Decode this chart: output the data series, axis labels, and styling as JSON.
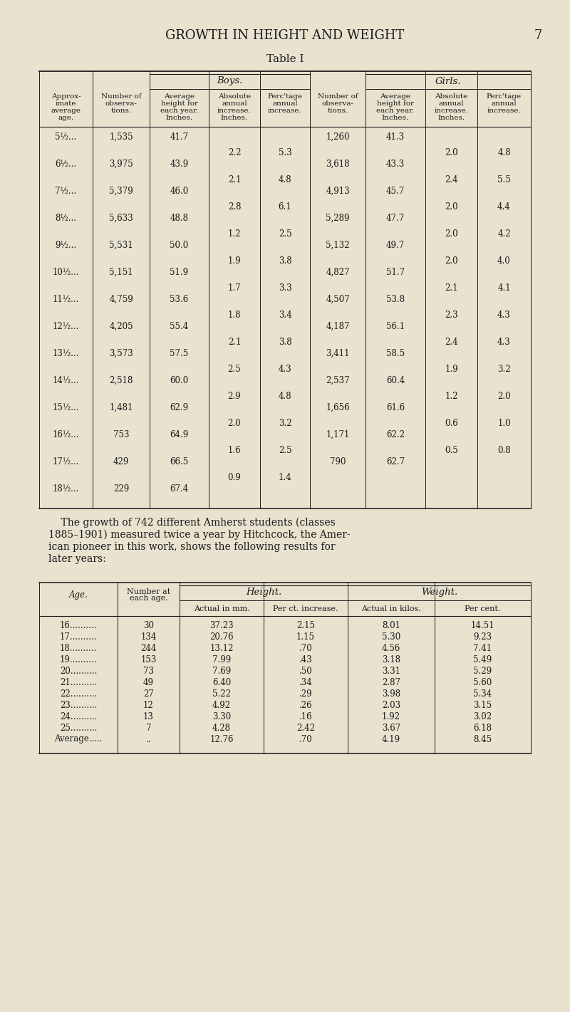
{
  "page_title": "GROWTH IN HEIGHT AND WEIGHT",
  "page_number": "7",
  "table1_title": "Table I",
  "bg_color": "#e8e2cf",
  "text_color": "#1a1a1a",
  "table1_data": [
    [
      "5½...",
      "1,535",
      "41.7",
      "",
      "",
      "1,260",
      "41.3",
      "",
      ""
    ],
    [
      "",
      "",
      "",
      "2.2",
      "5.3",
      "",
      "",
      "2.0",
      "4.8"
    ],
    [
      "6½...",
      "3,975",
      "43.9",
      "",
      "",
      "3,618",
      "43.3",
      "",
      ""
    ],
    [
      "",
      "",
      "",
      "2.1",
      "4.8",
      "",
      "",
      "2.4",
      "5.5"
    ],
    [
      "7½...",
      "5,379",
      "46.0",
      "",
      "",
      "4,913",
      "45.7",
      "",
      ""
    ],
    [
      "",
      "",
      "",
      "2.8",
      "6.1",
      "",
      "",
      "2.0",
      "4.4"
    ],
    [
      "8½...",
      "5,633",
      "48.8",
      "",
      "",
      "5,289",
      "47.7",
      "",
      ""
    ],
    [
      "",
      "",
      "",
      "1.2",
      "2.5",
      "",
      "",
      "2.0",
      "4.2"
    ],
    [
      "9½...",
      "5,531",
      "50.0",
      "",
      "",
      "5,132",
      "49.7",
      "",
      ""
    ],
    [
      "",
      "",
      "",
      "1.9",
      "3.8",
      "",
      "",
      "2.0",
      "4.0"
    ],
    [
      "10½...",
      "5,151",
      "51.9",
      "",
      "",
      "4,827",
      "51.7",
      "",
      ""
    ],
    [
      "",
      "",
      "",
      "1.7",
      "3.3",
      "",
      "",
      "2.1",
      "4.1"
    ],
    [
      "11½...",
      "4,759",
      "53.6",
      "",
      "",
      "4,507",
      "53.8",
      "",
      ""
    ],
    [
      "",
      "",
      "",
      "1.8",
      "3.4",
      "",
      "",
      "2.3",
      "4.3"
    ],
    [
      "12½...",
      "4,205",
      "55.4",
      "",
      "",
      "4,187",
      "56.1",
      "",
      ""
    ],
    [
      "",
      "",
      "",
      "2.1",
      "3.8",
      "",
      "",
      "2.4",
      "4.3"
    ],
    [
      "13½...",
      "3,573",
      "57.5",
      "",
      "",
      "3,411",
      "58.5",
      "",
      ""
    ],
    [
      "",
      "",
      "",
      "2.5",
      "4.3",
      "",
      "",
      "1.9",
      "3.2"
    ],
    [
      "14½...",
      "2,518",
      "60.0",
      "",
      "",
      "2,537",
      "60.4",
      "",
      ""
    ],
    [
      "",
      "",
      "",
      "2.9",
      "4.8",
      "",
      "",
      "1.2",
      "2.0"
    ],
    [
      "15½...",
      "1,481",
      "62.9",
      "",
      "",
      "1,656",
      "61.6",
      "",
      ""
    ],
    [
      "",
      "",
      "",
      "2.0",
      "3.2",
      "",
      "",
      "0.6",
      "1.0"
    ],
    [
      "16½...",
      "753",
      "64.9",
      "",
      "",
      "1,171",
      "62.2",
      "",
      ""
    ],
    [
      "",
      "",
      "",
      "1.6",
      "2.5",
      "",
      "",
      "0.5",
      "0.8"
    ],
    [
      "17½...",
      "429",
      "66.5",
      "",
      "",
      "790",
      "62.7",
      "",
      ""
    ],
    [
      "",
      "",
      "",
      "0.9",
      "1.4",
      "",
      "",
      "",
      ""
    ],
    [
      "18½...",
      "229",
      "67.4",
      "",
      "",
      "",
      "",
      "",
      ""
    ]
  ],
  "para_lines": [
    "    The growth of 742 different Amherst students (classes",
    "1885–1901) measured twice a year by Hitchcock, the Amer-",
    "ican pioneer in this work, shows the following results for",
    "later years:"
  ],
  "table2_data": [
    [
      "16..........",
      "30",
      "37.23",
      "2.15",
      "8.01",
      "14.51"
    ],
    [
      "17..........",
      "134",
      "20.76",
      "1.15",
      "5.30",
      "9.23"
    ],
    [
      "18..........",
      "244",
      "13.12",
      ".70",
      "4.56",
      "7.41"
    ],
    [
      "19..........",
      "153",
      "7.99",
      ".43",
      "3.18",
      "5.49"
    ],
    [
      "20..........",
      "73",
      "7.69",
      ".50",
      "3.31",
      "5.29"
    ],
    [
      "21..........",
      "49",
      "6.40",
      ".34",
      "2.87",
      "5.60"
    ],
    [
      "22..........",
      "27",
      "5.22",
      ".29",
      "3.98",
      "5.34"
    ],
    [
      "23..........",
      "12",
      "4.92",
      ".26",
      "2.03",
      "3.15"
    ],
    [
      "24..........",
      "13",
      "3.30",
      ".16",
      "1.92",
      "3.02"
    ],
    [
      "25..........",
      "7",
      "4.28",
      "2.42",
      "3.67",
      "6.18"
    ],
    [
      "Average.....",
      "..",
      "12.76",
      ".70",
      "4.19",
      "8.45"
    ]
  ]
}
